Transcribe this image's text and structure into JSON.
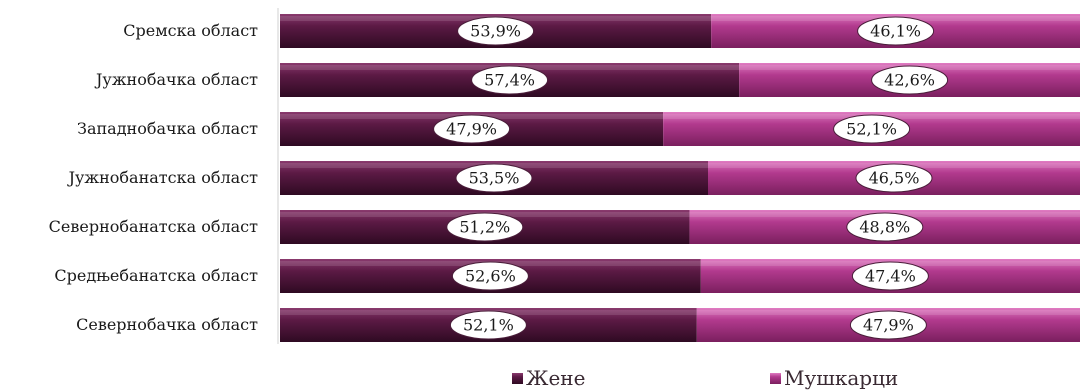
{
  "chart_data": {
    "type": "bar",
    "orientation": "horizontal",
    "stacked": "100%",
    "categories": [
      "Сремска област",
      "Јужнобачка област",
      "Западнобачка област",
      "Јужнобанатска област",
      "Севернобанатска област",
      "Средњебанатска област",
      "Севернобачка област"
    ],
    "series": [
      {
        "name": "Жене",
        "color": "#5c1a45",
        "values": [
          53.9,
          57.4,
          47.9,
          53.5,
          51.2,
          52.6,
          52.1
        ],
        "labels": [
          "53,9%",
          "57,4%",
          "47,9%",
          "53,5%",
          "51,2%",
          "52,6%",
          "52,1%"
        ]
      },
      {
        "name": "Мушкарци",
        "color": "#b23a8e",
        "values": [
          46.1,
          42.6,
          52.1,
          46.5,
          48.8,
          47.4,
          47.9
        ],
        "labels": [
          "46,1%",
          "42,6%",
          "52,1%",
          "46,5%",
          "48,8%",
          "47,4%",
          "47,9%"
        ]
      }
    ],
    "xlim": [
      0,
      100
    ],
    "grid": false,
    "legend": "bottom"
  }
}
